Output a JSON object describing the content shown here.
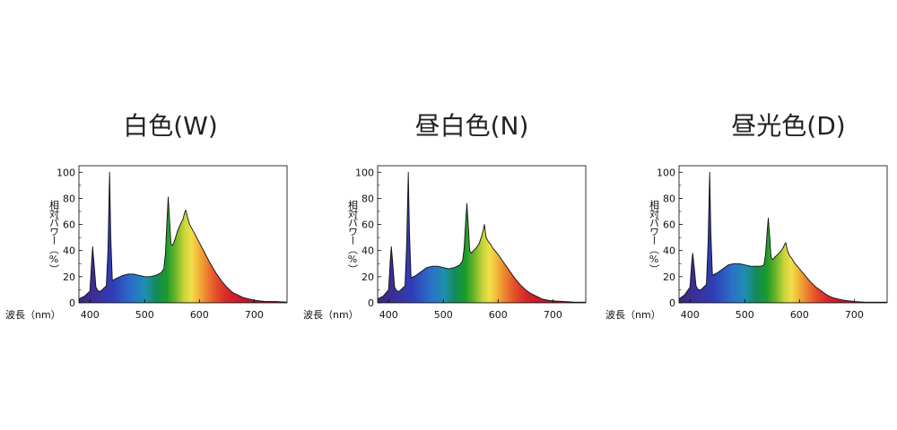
{
  "chart_data": [
    {
      "type": "area",
      "title": "白色(W)",
      "xlabel": "波長（nm）",
      "ylabel": "相対パワー（%）",
      "xlim": [
        380,
        760
      ],
      "ylim": [
        0,
        105
      ],
      "xticks": [
        400,
        500,
        600,
        700
      ],
      "yticks": [
        0,
        20,
        40,
        60,
        80,
        100
      ],
      "grid": false,
      "x": [
        380,
        390,
        400,
        403,
        405,
        408,
        411,
        415,
        420,
        425,
        430,
        433,
        436,
        438,
        441,
        445,
        450,
        460,
        470,
        480,
        490,
        500,
        510,
        520,
        530,
        535,
        538,
        541,
        543,
        546,
        548,
        551,
        555,
        560,
        565,
        570,
        573,
        575,
        578,
        582,
        586,
        590,
        600,
        610,
        620,
        630,
        640,
        650,
        660,
        670,
        680,
        690,
        700,
        720,
        740,
        760
      ],
      "y": [
        3,
        5,
        9,
        30,
        43,
        28,
        12,
        9,
        9,
        11,
        13,
        40,
        100,
        52,
        17,
        18,
        19,
        21,
        22,
        22,
        21,
        20,
        20,
        21,
        23,
        26,
        38,
        65,
        81,
        60,
        45,
        44,
        48,
        55,
        60,
        64,
        69,
        71,
        66,
        60,
        57,
        54,
        46,
        38,
        30,
        23,
        17,
        12,
        8,
        6,
        4,
        3,
        2,
        1,
        1,
        0.5
      ]
    },
    {
      "type": "area",
      "title": "昼白色(N)",
      "xlabel": "波長（nm）",
      "ylabel": "相対パワー（%）",
      "xlim": [
        380,
        760
      ],
      "ylim": [
        0,
        105
      ],
      "xticks": [
        400,
        500,
        600,
        700
      ],
      "yticks": [
        0,
        20,
        40,
        60,
        80,
        100
      ],
      "grid": false,
      "x": [
        380,
        390,
        400,
        403,
        405,
        408,
        411,
        415,
        420,
        425,
        430,
        433,
        436,
        438,
        441,
        445,
        450,
        460,
        470,
        480,
        490,
        500,
        510,
        520,
        530,
        535,
        538,
        541,
        543,
        546,
        548,
        551,
        555,
        560,
        565,
        570,
        573,
        575,
        578,
        582,
        586,
        590,
        600,
        610,
        620,
        630,
        640,
        650,
        660,
        670,
        680,
        690,
        700,
        720,
        740,
        760
      ],
      "y": [
        3,
        5,
        10,
        32,
        43,
        28,
        12,
        9,
        9,
        11,
        13,
        45,
        100,
        55,
        19,
        20,
        21,
        24,
        27,
        28,
        28,
        27,
        26,
        27,
        29,
        32,
        42,
        64,
        76,
        56,
        40,
        38,
        40,
        42,
        45,
        51,
        56,
        60,
        50,
        47,
        45,
        42,
        37,
        31,
        25,
        19,
        14,
        10,
        7,
        5,
        3,
        2,
        1.5,
        1,
        0.5,
        0.5
      ]
    },
    {
      "type": "area",
      "title": "昼光色(D)",
      "xlabel": "波長（nm）",
      "ylabel": "相対パワー（%）",
      "xlim": [
        380,
        760
      ],
      "ylim": [
        0,
        105
      ],
      "xticks": [
        400,
        500,
        600,
        700
      ],
      "yticks": [
        0,
        20,
        40,
        60,
        80,
        100
      ],
      "grid": false,
      "x": [
        380,
        390,
        400,
        403,
        405,
        408,
        411,
        415,
        420,
        425,
        430,
        433,
        436,
        438,
        441,
        445,
        450,
        460,
        470,
        480,
        490,
        500,
        510,
        520,
        530,
        535,
        538,
        541,
        543,
        546,
        548,
        551,
        555,
        560,
        565,
        570,
        573,
        575,
        578,
        582,
        586,
        590,
        600,
        610,
        620,
        630,
        640,
        650,
        660,
        670,
        680,
        690,
        700,
        720,
        740,
        760
      ],
      "y": [
        3,
        6,
        12,
        30,
        38,
        26,
        13,
        10,
        10,
        12,
        14,
        45,
        100,
        55,
        21,
        22,
        23,
        26,
        29,
        30,
        30,
        29,
        28,
        28,
        28,
        29,
        37,
        55,
        65,
        48,
        35,
        33,
        35,
        37,
        39,
        42,
        45,
        46,
        40,
        36,
        34,
        31,
        26,
        21,
        16,
        12,
        9,
        6,
        4,
        3,
        2,
        1.5,
        1,
        0.5,
        0.5,
        0.5
      ]
    }
  ]
}
